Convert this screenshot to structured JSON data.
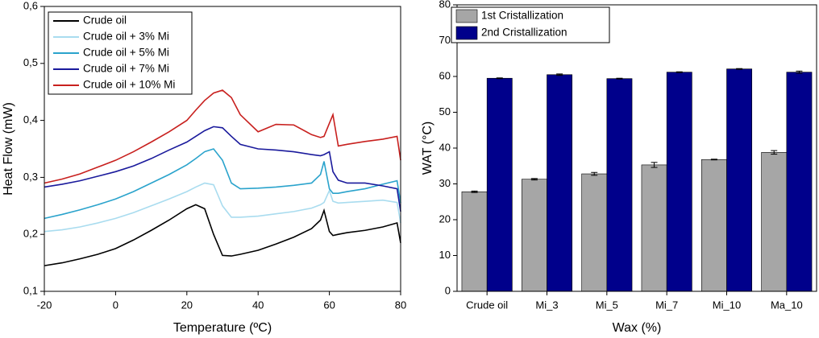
{
  "chart_data": [
    {
      "type": "line",
      "x_label": "Temperature (ºC)",
      "y_label": "Heat Flow (mW)",
      "xlim": [
        -20,
        80
      ],
      "xticks": [
        -20,
        0,
        20,
        40,
        60,
        80
      ],
      "ylim": [
        0.1,
        0.6
      ],
      "yticks": [
        {
          "value": 0.1,
          "label": "0,1"
        },
        {
          "value": 0.2,
          "label": "0,2"
        },
        {
          "value": 0.3,
          "label": "0,3"
        },
        {
          "value": 0.4,
          "label": "0,4"
        },
        {
          "value": 0.5,
          "label": "0,5"
        },
        {
          "value": 0.6,
          "label": "0,6"
        }
      ],
      "legend": "upper left",
      "x": [
        -20,
        -15,
        -10,
        -5,
        0,
        5,
        10,
        15,
        20,
        22.5,
        25,
        27.5,
        30,
        32.5,
        35,
        40,
        45,
        50,
        55,
        57.5,
        58.5,
        60,
        61,
        62.5,
        65,
        70,
        75,
        79,
        80
      ],
      "series": [
        {
          "name": "Crude oil",
          "color": "#000000",
          "values": [
            0.145,
            0.15,
            0.157,
            0.165,
            0.175,
            0.19,
            0.207,
            0.225,
            0.245,
            0.252,
            0.245,
            0.2,
            0.163,
            0.162,
            0.165,
            0.172,
            0.183,
            0.195,
            0.21,
            0.225,
            0.242,
            0.205,
            0.198,
            0.2,
            0.203,
            0.207,
            0.213,
            0.22,
            0.185
          ]
        },
        {
          "name": "Crude oil + 3% Mi",
          "color": "#a9dcef",
          "values": [
            0.205,
            0.208,
            0.213,
            0.22,
            0.228,
            0.238,
            0.25,
            0.262,
            0.275,
            0.283,
            0.29,
            0.287,
            0.25,
            0.23,
            0.23,
            0.232,
            0.236,
            0.24,
            0.246,
            0.252,
            0.256,
            0.277,
            0.258,
            0.255,
            0.256,
            0.258,
            0.26,
            0.256,
            0.22
          ]
        },
        {
          "name": "Crude oil + 5% Mi",
          "color": "#2aa3cc",
          "values": [
            0.228,
            0.235,
            0.243,
            0.252,
            0.262,
            0.275,
            0.29,
            0.305,
            0.322,
            0.333,
            0.345,
            0.35,
            0.33,
            0.29,
            0.28,
            0.281,
            0.283,
            0.286,
            0.29,
            0.305,
            0.328,
            0.28,
            0.272,
            0.272,
            0.275,
            0.28,
            0.288,
            0.294,
            0.255
          ]
        },
        {
          "name": "Crude oil + 7% Mi",
          "color": "#1a1a9c",
          "values": [
            0.283,
            0.288,
            0.294,
            0.302,
            0.31,
            0.32,
            0.333,
            0.348,
            0.362,
            0.372,
            0.382,
            0.389,
            0.387,
            0.372,
            0.358,
            0.35,
            0.348,
            0.345,
            0.34,
            0.338,
            0.34,
            0.345,
            0.31,
            0.295,
            0.29,
            0.29,
            0.285,
            0.28,
            0.24
          ]
        },
        {
          "name": "Crude oil + 10% Mi",
          "color": "#c8201e",
          "values": [
            0.29,
            0.297,
            0.306,
            0.318,
            0.33,
            0.345,
            0.362,
            0.38,
            0.4,
            0.418,
            0.435,
            0.448,
            0.453,
            0.44,
            0.41,
            0.38,
            0.393,
            0.392,
            0.375,
            0.37,
            0.372,
            0.395,
            0.41,
            0.355,
            0.358,
            0.363,
            0.367,
            0.372,
            0.33
          ]
        }
      ]
    },
    {
      "type": "bar",
      "x_label": "Wax (%)",
      "y_label": "WAT (°C)",
      "ylim": [
        0,
        80
      ],
      "yticks": [
        0,
        10,
        20,
        30,
        40,
        50,
        60,
        70,
        80
      ],
      "legend": "upper left",
      "categories": [
        "Crude oil",
        "Mi_3",
        "Mi_5",
        "Mi_7",
        "Mi_10",
        "Ma_10"
      ],
      "series": [
        {
          "name": "1st Cristallization",
          "color": "#a6a6a6",
          "values": [
            27.8,
            31.3,
            32.8,
            35.3,
            36.8,
            38.8
          ],
          "errors": [
            0.2,
            0.2,
            0.4,
            0.7,
            0.1,
            0.5
          ]
        },
        {
          "name": "2nd Cristallization",
          "color": "#00008b",
          "values": [
            59.5,
            60.5,
            59.4,
            61.2,
            62.1,
            61.2
          ],
          "errors": [
            0.1,
            0.2,
            0.1,
            0.1,
            0.1,
            0.3
          ]
        }
      ]
    }
  ]
}
